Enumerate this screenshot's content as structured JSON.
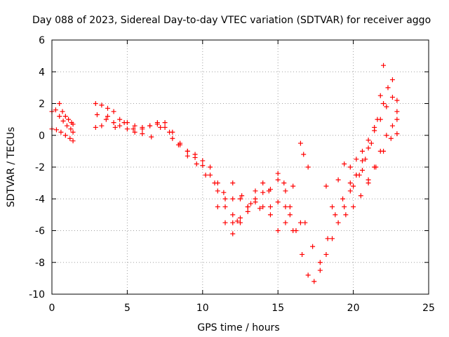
{
  "chart_data": {
    "type": "scatter",
    "title": "Day 088 of 2023, Sidereal Day-to-day VTEC variation (SDTVAR) for receiver aggo",
    "xlabel": "GPS time / hours",
    "ylabel": "SDTVAR / TECUs",
    "xlim": [
      0,
      25
    ],
    "ylim": [
      -10,
      6
    ],
    "xticks": [
      0,
      5,
      10,
      15,
      20,
      25
    ],
    "yticks": [
      -10,
      -8,
      -6,
      -4,
      -2,
      0,
      2,
      4,
      6
    ],
    "grid": true,
    "marker": "+",
    "color": "#ff0000",
    "series": [
      {
        "x": [
          0.0,
          0.25,
          0.5,
          0.75,
          1.0,
          1.25,
          1.4
        ],
        "y": [
          1.5,
          1.6,
          1.2,
          0.9,
          0.6,
          0.4,
          0.2
        ]
      },
      {
        "x": [
          0.0,
          0.3,
          0.6,
          0.9,
          1.2,
          1.4
        ],
        "y": [
          0.4,
          0.35,
          0.2,
          0.0,
          -0.2,
          -0.35
        ]
      },
      {
        "x": [
          0.5,
          0.7,
          0.9,
          1.1,
          1.3,
          1.4
        ],
        "y": [
          2.0,
          1.5,
          1.2,
          1.0,
          0.8,
          0.7
        ]
      },
      {
        "x": [
          2.9,
          3.3,
          3.7,
          4.1,
          4.5,
          5.0,
          5.5,
          6.0,
          6.5,
          7.0,
          7.5,
          8.0,
          8.5,
          9.0,
          9.5,
          10.0,
          10.5,
          11.0,
          11.5,
          12.0,
          12.3
        ],
        "y": [
          2.0,
          1.9,
          1.7,
          1.5,
          1.0,
          0.8,
          0.6,
          0.5,
          0.6,
          0.8,
          0.8,
          0.2,
          -0.5,
          -1.0,
          -1.2,
          -1.6,
          -2.0,
          -3.0,
          -4.0,
          -5.0,
          -5.4
        ]
      },
      {
        "x": [
          2.9,
          3.3,
          3.7,
          4.1,
          4.5,
          5.0,
          5.5,
          6.0,
          6.5,
          7.0,
          7.5,
          8.0,
          8.5,
          9.0,
          9.5,
          10.0,
          10.5,
          11.0,
          11.5,
          12.0,
          12.5,
          13.0,
          13.5,
          14.0,
          14.5,
          15.0,
          15.5,
          16.0
        ],
        "y": [
          0.5,
          0.6,
          1.2,
          0.8,
          0.6,
          0.4,
          0.2,
          0.4,
          0.6,
          0.7,
          0.5,
          -0.2,
          -0.6,
          -1.0,
          -1.4,
          -1.9,
          -2.5,
          -3.5,
          -4.5,
          -5.5,
          -5.2,
          -4.5,
          -4.0,
          -4.5,
          -5.0,
          -4.2,
          -5.5,
          -6.0
        ]
      },
      {
        "x": [
          3.0,
          3.6,
          4.2,
          4.8,
          5.4,
          6.0,
          6.6,
          7.2,
          7.8,
          8.4,
          9.0,
          9.6,
          10.2,
          10.8,
          11.4,
          12.0,
          12.6,
          13.2,
          13.8,
          14.4,
          15.0,
          15.4,
          15.8,
          16.2,
          16.6,
          17.0,
          17.4,
          17.8,
          18.2,
          18.6,
          19.0,
          19.4,
          19.8,
          20.2,
          20.6,
          21.0,
          21.4,
          21.8,
          22.0
        ],
        "y": [
          1.3,
          1.0,
          0.5,
          0.8,
          0.4,
          0.1,
          -0.1,
          0.5,
          0.2,
          -0.6,
          -1.3,
          -1.8,
          -2.5,
          -3.0,
          -3.6,
          -4.0,
          -3.8,
          -4.3,
          -4.6,
          -3.5,
          -2.4,
          -3.0,
          -4.5,
          -6.0,
          -7.5,
          -8.8,
          -9.2,
          -8.5,
          -7.5,
          -6.5,
          -5.5,
          -4.5,
          -3.5,
          -2.5,
          -1.6,
          -0.8,
          0.5,
          2.5,
          4.4
        ]
      },
      {
        "x": [
          11.0,
          11.5,
          12.0,
          12.5,
          13.0,
          13.5,
          14.0,
          14.5,
          15.0,
          15.5,
          15.8
        ],
        "y": [
          -4.5,
          -5.5,
          -6.2,
          -5.5,
          -4.8,
          -4.2,
          -3.6,
          -3.4,
          -2.8,
          -3.5,
          -5.0
        ]
      },
      {
        "x": [
          12.0,
          12.5,
          13.0,
          13.5,
          14.0,
          14.5,
          15.0,
          15.5,
          16.0,
          16.5
        ],
        "y": [
          -3.0,
          -4.0,
          -4.5,
          -3.5,
          -3.0,
          -4.5,
          -6.0,
          -4.5,
          -3.2,
          -5.5
        ]
      },
      {
        "x": [
          16.5,
          16.7,
          17.0
        ],
        "y": [
          -0.5,
          -1.2,
          -2.0
        ]
      },
      {
        "x": [
          16.8,
          17.3,
          17.8,
          18.3,
          18.8,
          19.3,
          19.8,
          20.2,
          20.6,
          21.0,
          21.4,
          21.8,
          22.2,
          22.6,
          22.9
        ],
        "y": [
          -5.5,
          -7.0,
          -8.0,
          -6.5,
          -5.0,
          -4.0,
          -3.0,
          -2.5,
          -2.2,
          -2.8,
          -2.0,
          -1.0,
          0.0,
          0.6,
          1.0
        ]
      },
      {
        "x": [
          18.2,
          18.6,
          19.0,
          19.4,
          19.8,
          20.2,
          20.6,
          21.0,
          21.4,
          21.8,
          22.2,
          22.6,
          22.9
        ],
        "y": [
          -3.2,
          -4.5,
          -2.8,
          -1.8,
          -2.0,
          -1.5,
          -1.0,
          -0.3,
          0.3,
          1.0,
          1.8,
          2.4,
          2.2
        ]
      },
      {
        "x": [
          20.0,
          20.4,
          20.8,
          21.2,
          21.6,
          22.0,
          22.3,
          22.6,
          22.9
        ],
        "y": [
          -3.2,
          -2.5,
          -1.5,
          -0.5,
          1.0,
          2.0,
          3.0,
          3.5,
          1.5
        ]
      },
      {
        "x": [
          19.5,
          20.0,
          20.5,
          21.0,
          21.5,
          22.0,
          22.5,
          22.9
        ],
        "y": [
          -5.0,
          -4.5,
          -3.8,
          -3.0,
          -2.0,
          -1.0,
          -0.2,
          0.1
        ]
      }
    ]
  }
}
